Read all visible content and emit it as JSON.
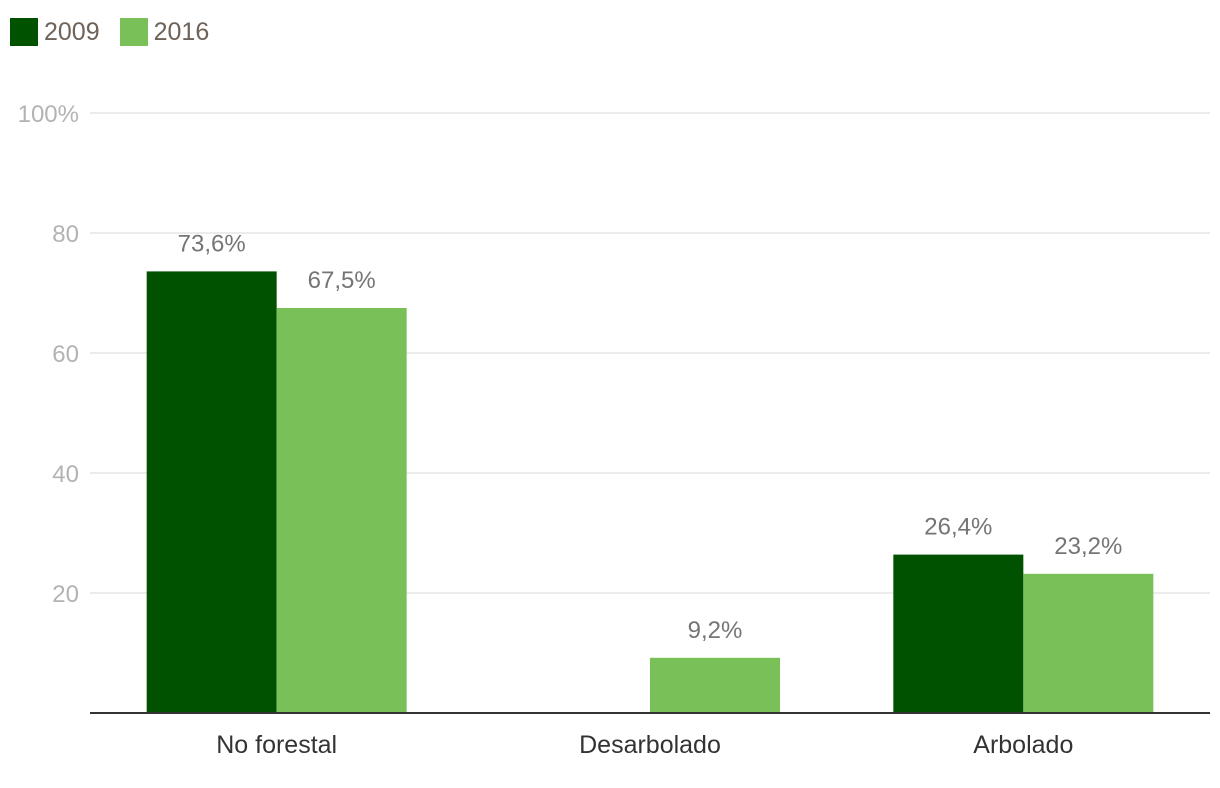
{
  "colors": {
    "series_2009": "#005200",
    "series_2016": "#79c058",
    "grid": "#e6e6e6",
    "axis": "#333333"
  },
  "legend": {
    "items": [
      {
        "label": "2009",
        "color_key": "series_2009"
      },
      {
        "label": "2016",
        "color_key": "series_2016"
      }
    ],
    "placement": "top-left"
  },
  "chart_data": {
    "type": "bar",
    "title": "",
    "xlabel": "",
    "ylabel": "",
    "ylim": [
      0,
      100
    ],
    "yticks": [
      {
        "value": 20,
        "label": "20"
      },
      {
        "value": 40,
        "label": "40"
      },
      {
        "value": 60,
        "label": "60"
      },
      {
        "value": 80,
        "label": "80"
      },
      {
        "value": 100,
        "label": "100%"
      }
    ],
    "grid": true,
    "categories": [
      "No forestal",
      "Desarbolado",
      "Arbolado"
    ],
    "series": [
      {
        "name": "2009",
        "color_key": "series_2009",
        "values": [
          73.6,
          null,
          26.4
        ],
        "labels": [
          "73,6%",
          "",
          "26,4%"
        ]
      },
      {
        "name": "2016",
        "color_key": "series_2016",
        "values": [
          67.5,
          9.2,
          23.2
        ],
        "labels": [
          "67,5%",
          "9,2%",
          "23,2%"
        ]
      }
    ]
  }
}
